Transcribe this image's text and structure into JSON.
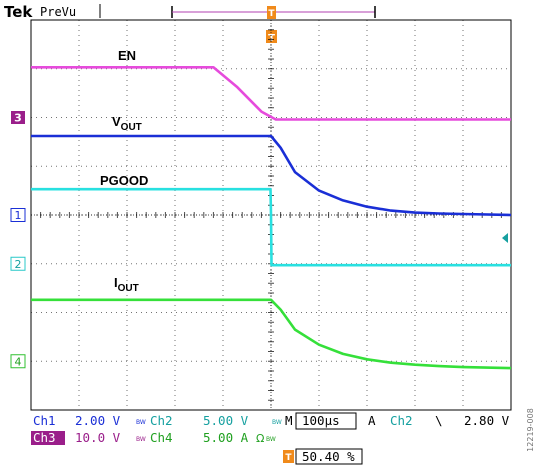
{
  "header": {
    "brand": "Tek",
    "mode": "PreVu"
  },
  "colors": {
    "ch1": "#1a2fd6",
    "ch2": "#28e0e0",
    "ch3": "#e64bdc",
    "ch4": "#35e03a",
    "trigger": "#f08a1a",
    "grid": "#000000"
  },
  "chart_data": {
    "type": "line",
    "time_unit": "divisions",
    "xlim": [
      0,
      10
    ],
    "ylim": [
      -4,
      4
    ],
    "grid": true,
    "series": [
      {
        "name": "EN",
        "channel": "Ch3",
        "marker": "3",
        "x": [
          0,
          3.8,
          4.3,
          4.8,
          5.1,
          10
        ],
        "y": [
          3.03,
          3.03,
          2.62,
          2.12,
          1.96,
          1.96
        ]
      },
      {
        "name": "VOUT",
        "channel": "Ch1",
        "marker": "1",
        "x": [
          0,
          5.0,
          5.2,
          5.5,
          6.0,
          6.5,
          7.0,
          7.5,
          8.0,
          8.5,
          9.0,
          10
        ],
        "y": [
          1.62,
          1.62,
          1.38,
          0.88,
          0.5,
          0.3,
          0.17,
          0.09,
          0.05,
          0.03,
          0.02,
          0.0
        ]
      },
      {
        "name": "PGOOD",
        "channel": "Ch2",
        "marker": "2",
        "x": [
          0,
          4.99,
          5.0,
          5.01,
          10
        ],
        "y": [
          0.53,
          0.53,
          0.0,
          -1.03,
          -1.03
        ]
      },
      {
        "name": "IOUT",
        "channel": "Ch4",
        "marker": "4",
        "x": [
          0,
          5.0,
          5.2,
          5.5,
          6.0,
          6.5,
          7.0,
          7.5,
          8.0,
          8.5,
          9.0,
          10
        ],
        "y": [
          -1.74,
          -1.74,
          -1.94,
          -2.35,
          -2.66,
          -2.85,
          -2.96,
          -3.03,
          -3.07,
          -3.1,
          -3.12,
          -3.14
        ]
      }
    ],
    "labels": {
      "en": "EN",
      "vout_main": "V",
      "vout_sub": "OUT",
      "pgood": "PGOOD",
      "iout_main": "I",
      "iout_sub": "OUT"
    },
    "markers": {
      "trigger": "T",
      "ch1": "1",
      "ch2": "2",
      "ch3": "3",
      "ch4": "4"
    }
  },
  "readouts": {
    "ch1": "Ch1",
    "ch1_scale": "2.00 V",
    "ch1_bw": "BW",
    "ch2": "Ch2",
    "ch2_scale": "5.00 V",
    "ch2_bw": "BW",
    "ch3": "Ch3",
    "ch3_scale": "10.0 V",
    "ch3_bw": "BW",
    "ch4": "Ch4",
    "ch4_scale": "5.00 A",
    "ch4_omega": "Ω",
    "ch4_bw": "BW",
    "timebase_label": "M",
    "timebase": "100µs",
    "trig_label": "A",
    "trig_ch": "Ch2",
    "trig_slope": "\\",
    "trig_level": "2.80 V",
    "trig_pos": "50.40 %",
    "side_id": "12219-008"
  }
}
